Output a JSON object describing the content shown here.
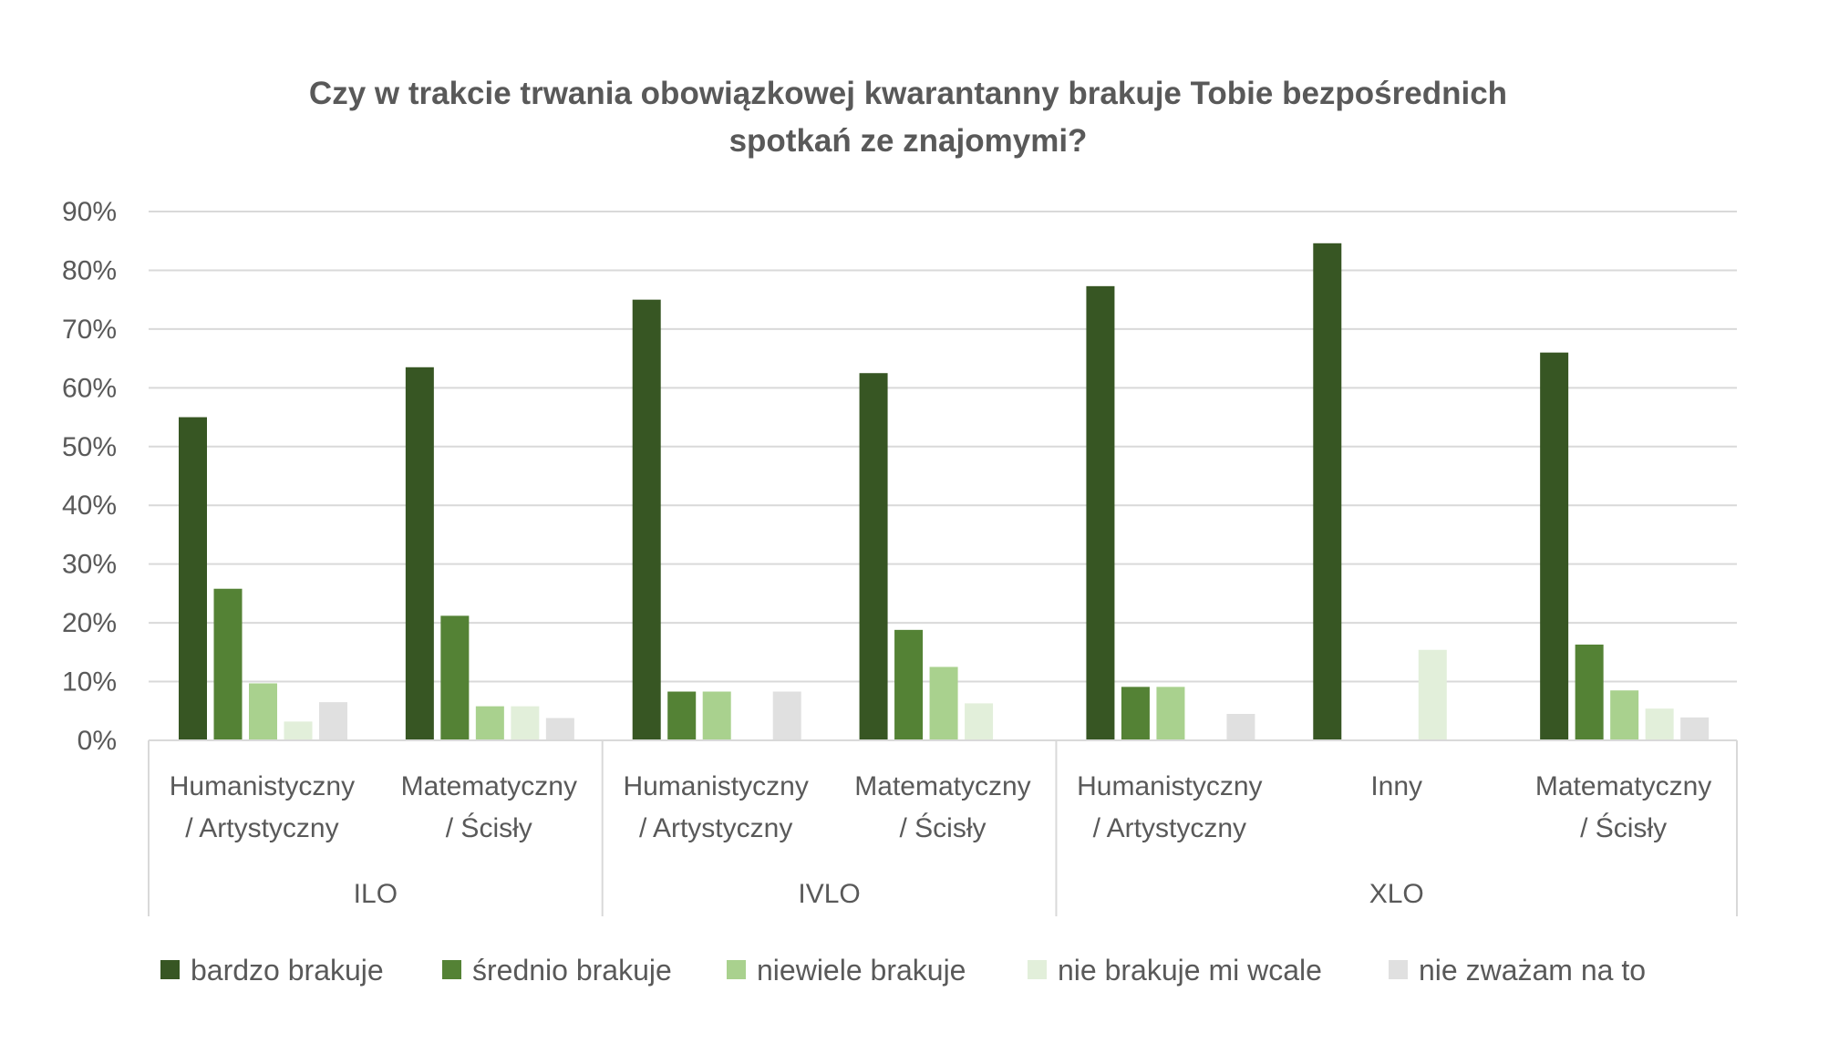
{
  "chart_data": {
    "type": "bar",
    "title_lines": [
      "Czy w trakcie trwania obowiązkowej kwarantanny brakuje Tobie bezpośrednich",
      "spotkań ze znajomymi?"
    ],
    "xlabel": "",
    "ylabel": "",
    "ylim": [
      0,
      90
    ],
    "yticks": [
      "0%",
      "10%",
      "20%",
      "30%",
      "40%",
      "50%",
      "60%",
      "70%",
      "80%",
      "90%"
    ],
    "grid": true,
    "legend_position": "bottom",
    "groups": [
      {
        "name": "ILO",
        "categories": [
          [
            "Humanistyczny",
            "/ Artystyczny"
          ],
          [
            "Matematyczny",
            "/ Ścisły"
          ]
        ]
      },
      {
        "name": "IVLO",
        "categories": [
          [
            "Humanistyczny",
            "/ Artystyczny"
          ],
          [
            "Matematyczny",
            "/ Ścisły"
          ]
        ]
      },
      {
        "name": "XLO",
        "categories": [
          [
            "Humanistyczny",
            "/ Artystyczny"
          ],
          [
            "Inny"
          ],
          [
            "Matematyczny",
            "/ Ścisły"
          ]
        ]
      }
    ],
    "series": [
      {
        "name": "bardzo brakuje",
        "color": "#375623",
        "values": [
          55,
          63.5,
          75,
          62.5,
          77.3,
          84.6,
          66
        ]
      },
      {
        "name": "średnio brakuje",
        "color": "#548235",
        "values": [
          25.8,
          21.2,
          8.3,
          18.8,
          9.1,
          0,
          16.3
        ]
      },
      {
        "name": "niewiele brakuje",
        "color": "#a9d18e",
        "values": [
          9.7,
          5.8,
          8.3,
          12.5,
          9.1,
          0,
          8.5
        ]
      },
      {
        "name": "nie brakuje mi wcale",
        "color": "#e2efda",
        "values": [
          3.2,
          5.8,
          0,
          6.3,
          0,
          15.4,
          5.4
        ]
      },
      {
        "name": "nie zważam na to",
        "color": "#e0e0e0",
        "values": [
          6.5,
          3.8,
          8.3,
          0,
          4.5,
          0,
          3.9
        ]
      }
    ]
  }
}
